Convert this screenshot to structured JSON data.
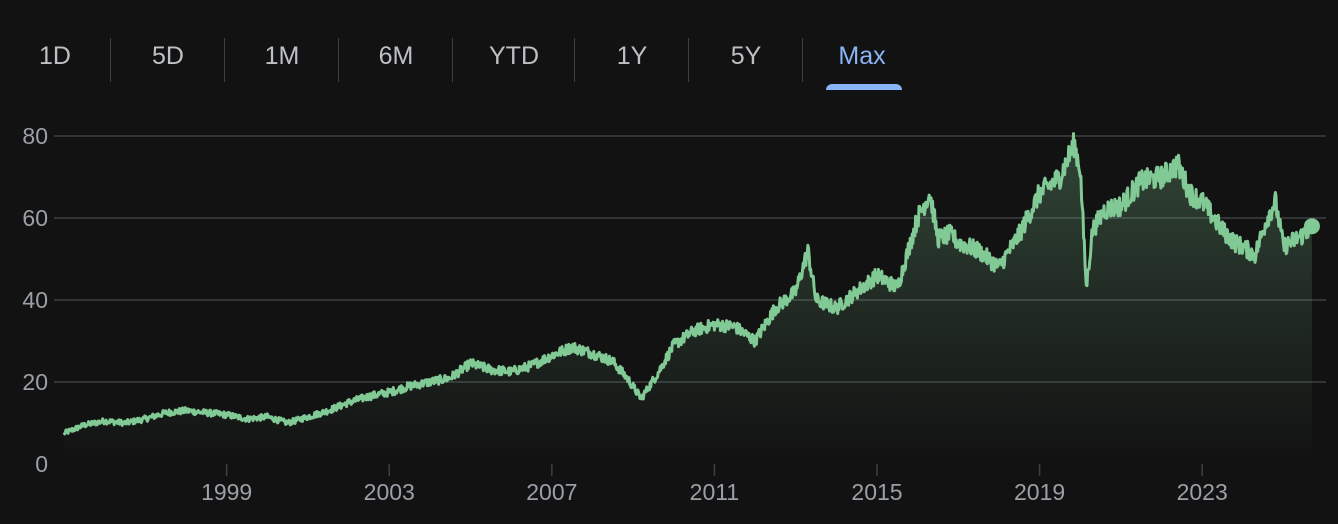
{
  "tabs": [
    {
      "label": "1D",
      "active": false
    },
    {
      "label": "5D",
      "active": false
    },
    {
      "label": "1M",
      "active": false
    },
    {
      "label": "6M",
      "active": false
    },
    {
      "label": "YTD",
      "active": false
    },
    {
      "label": "1Y",
      "active": false
    },
    {
      "label": "5Y",
      "active": false
    },
    {
      "label": "Max",
      "active": true
    }
  ],
  "colors": {
    "background": "#121212",
    "line": "#81c995",
    "active_tab": "#8ab4f8",
    "gridline": "#3c4043",
    "tick_text": "#9aa0a6"
  },
  "chart_data": {
    "type": "area",
    "title": "",
    "xlabel": "",
    "ylabel": "",
    "ylim": [
      0,
      80
    ],
    "xlim": [
      1994.9,
      2025.8
    ],
    "yticks": [
      "0",
      "20",
      "40",
      "60",
      "80"
    ],
    "xticks": [
      "1999",
      "2003",
      "2007",
      "2011",
      "2015",
      "2019",
      "2023"
    ],
    "grid": true,
    "series": [
      {
        "x": [
          1995.0,
          1995.5,
          1996.0,
          1996.5,
          1997.0,
          1997.5,
          1998.0,
          1998.5,
          1999.0,
          1999.5,
          2000.0,
          2000.5,
          2001.0,
          2001.5,
          2002.0,
          2002.5,
          2003.0,
          2003.5,
          2004.0,
          2004.5,
          2005.0,
          2005.5,
          2006.0,
          2006.5,
          2007.0,
          2007.5,
          2008.0,
          2008.5,
          2008.85,
          2009.2,
          2009.6,
          2010.0,
          2010.5,
          2011.0,
          2011.5,
          2012.0,
          2012.5,
          2013.0,
          2013.3,
          2013.5,
          2014.0,
          2014.5,
          2015.0,
          2015.5,
          2016.0,
          2016.3,
          2016.5,
          2016.8,
          2017.0,
          2017.5,
          2018.0,
          2018.5,
          2019.0,
          2019.5,
          2019.85,
          2020.0,
          2020.15,
          2020.3,
          2020.6,
          2021.0,
          2021.5,
          2022.0,
          2022.4,
          2022.7,
          2023.0,
          2023.5,
          2023.8,
          2024.0,
          2024.3,
          2024.6,
          2024.8,
          2025.0,
          2025.5,
          2025.7
        ],
        "y": [
          7.5,
          9.5,
          10.5,
          10.0,
          11.0,
          12.5,
          13.0,
          12.5,
          12.0,
          11.0,
          11.5,
          10.0,
          11.5,
          13.0,
          15.0,
          16.5,
          17.5,
          19.0,
          20.0,
          21.0,
          24.5,
          23.0,
          22.5,
          24.0,
          26.5,
          28.5,
          27.0,
          25.0,
          21.0,
          16.0,
          22.0,
          29.0,
          32.5,
          34.0,
          33.5,
          30.0,
          38.0,
          42.0,
          52.0,
          40.0,
          38.0,
          42.0,
          46.0,
          43.0,
          60.0,
          66.0,
          55.0,
          56.0,
          54.0,
          52.0,
          48.0,
          56.0,
          66.0,
          70.0,
          78.0,
          72.0,
          43.0,
          57.0,
          62.0,
          63.0,
          69.0,
          70.0,
          73.0,
          66.0,
          64.0,
          57.0,
          54.0,
          53.0,
          51.0,
          60.0,
          64.0,
          53.0,
          56.0,
          58.0
        ]
      }
    ]
  }
}
